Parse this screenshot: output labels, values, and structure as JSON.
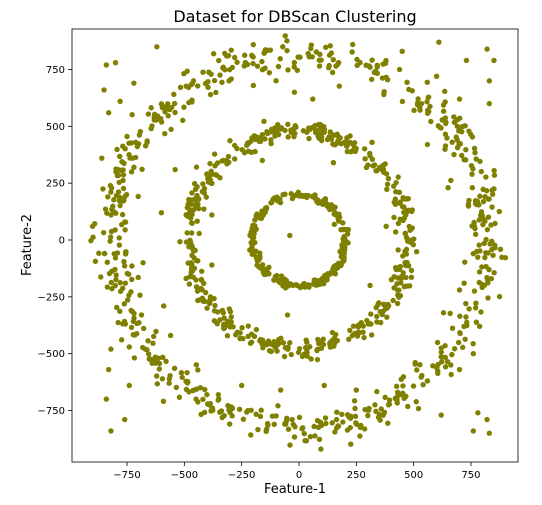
{
  "chart_data": {
    "type": "scatter",
    "title": "Dataset for DBScan Clustering",
    "xlabel": "Feature-1",
    "ylabel": "Feature-2",
    "xlim": [
      -960,
      960
    ],
    "ylim": [
      -960,
      960
    ],
    "xticks": [
      {
        "value": -750,
        "label": "−750"
      },
      {
        "value": -500,
        "label": "−500"
      },
      {
        "value": -250,
        "label": "−250"
      },
      {
        "value": 0,
        "label": "0"
      },
      {
        "value": 250,
        "label": "250"
      },
      {
        "value": 500,
        "label": "500"
      },
      {
        "value": 750,
        "label": "750"
      }
    ],
    "yticks": [
      {
        "value": 750,
        "label": "750"
      },
      {
        "value": 500,
        "label": "500"
      },
      {
        "value": 250,
        "label": "250"
      },
      {
        "value": 0,
        "label": "0"
      },
      {
        "value": -250,
        "label": "−250"
      },
      {
        "value": -500,
        "label": "−500"
      },
      {
        "value": -750,
        "label": "−750"
      }
    ],
    "grid": false,
    "legend": "none",
    "marker_color": "#808000",
    "series": [
      {
        "rings": [
          {
            "radius": 820,
            "count": 640
          },
          {
            "radius": 480,
            "count": 460
          },
          {
            "radius": 200,
            "count": 240
          }
        ],
        "noise_points": [
          [
            -840,
            770
          ],
          [
            -850,
            660
          ],
          [
            -830,
            560
          ],
          [
            -780,
            610
          ],
          [
            -800,
            780
          ],
          [
            -860,
            360
          ],
          [
            -900,
            60
          ],
          [
            -820,
            -480
          ],
          [
            -830,
            -570
          ],
          [
            -840,
            -700
          ],
          [
            -820,
            -840
          ],
          [
            -760,
            -790
          ],
          [
            -740,
            -640
          ],
          [
            -620,
            850
          ],
          [
            -460,
            700
          ],
          [
            -330,
            760
          ],
          [
            -540,
            310
          ],
          [
            -600,
            120
          ],
          [
            -680,
            -100
          ],
          [
            -590,
            -290
          ],
          [
            -430,
            -650
          ],
          [
            -250,
            -640
          ],
          [
            -140,
            -460
          ],
          [
            -80,
            -660
          ],
          [
            110,
            -640
          ],
          [
            250,
            -660
          ],
          [
            430,
            -670
          ],
          [
            560,
            -620
          ],
          [
            700,
            -570
          ],
          [
            760,
            -500
          ],
          [
            780,
            -760
          ],
          [
            820,
            -790
          ],
          [
            830,
            -850
          ],
          [
            760,
            -840
          ],
          [
            620,
            -770
          ],
          [
            610,
            870
          ],
          [
            450,
            830
          ],
          [
            310,
            760
          ],
          [
            730,
            790
          ],
          [
            820,
            840
          ],
          [
            850,
            790
          ],
          [
            830,
            700
          ],
          [
            830,
            600
          ],
          [
            700,
            620
          ],
          [
            690,
            440
          ],
          [
            770,
            160
          ],
          [
            760,
            -60
          ],
          [
            700,
            -220
          ],
          [
            630,
            -320
          ],
          [
            150,
            340
          ],
          [
            -160,
            350
          ],
          [
            -380,
            110
          ],
          [
            -380,
            -110
          ],
          [
            310,
            -200
          ],
          [
            380,
            60
          ],
          [
            -20,
            650
          ],
          [
            60,
            620
          ],
          [
            -50,
            -330
          ],
          [
            330,
            330
          ],
          [
            -330,
            -320
          ],
          [
            560,
            420
          ],
          [
            -560,
            -420
          ],
          [
            -30,
            -790
          ],
          [
            40,
            820
          ],
          [
            -40,
            20
          ],
          [
            600,
            720
          ],
          [
            -720,
            690
          ],
          [
            -730,
            300
          ],
          [
            720,
            -190
          ],
          [
            650,
            230
          ]
        ]
      }
    ]
  }
}
